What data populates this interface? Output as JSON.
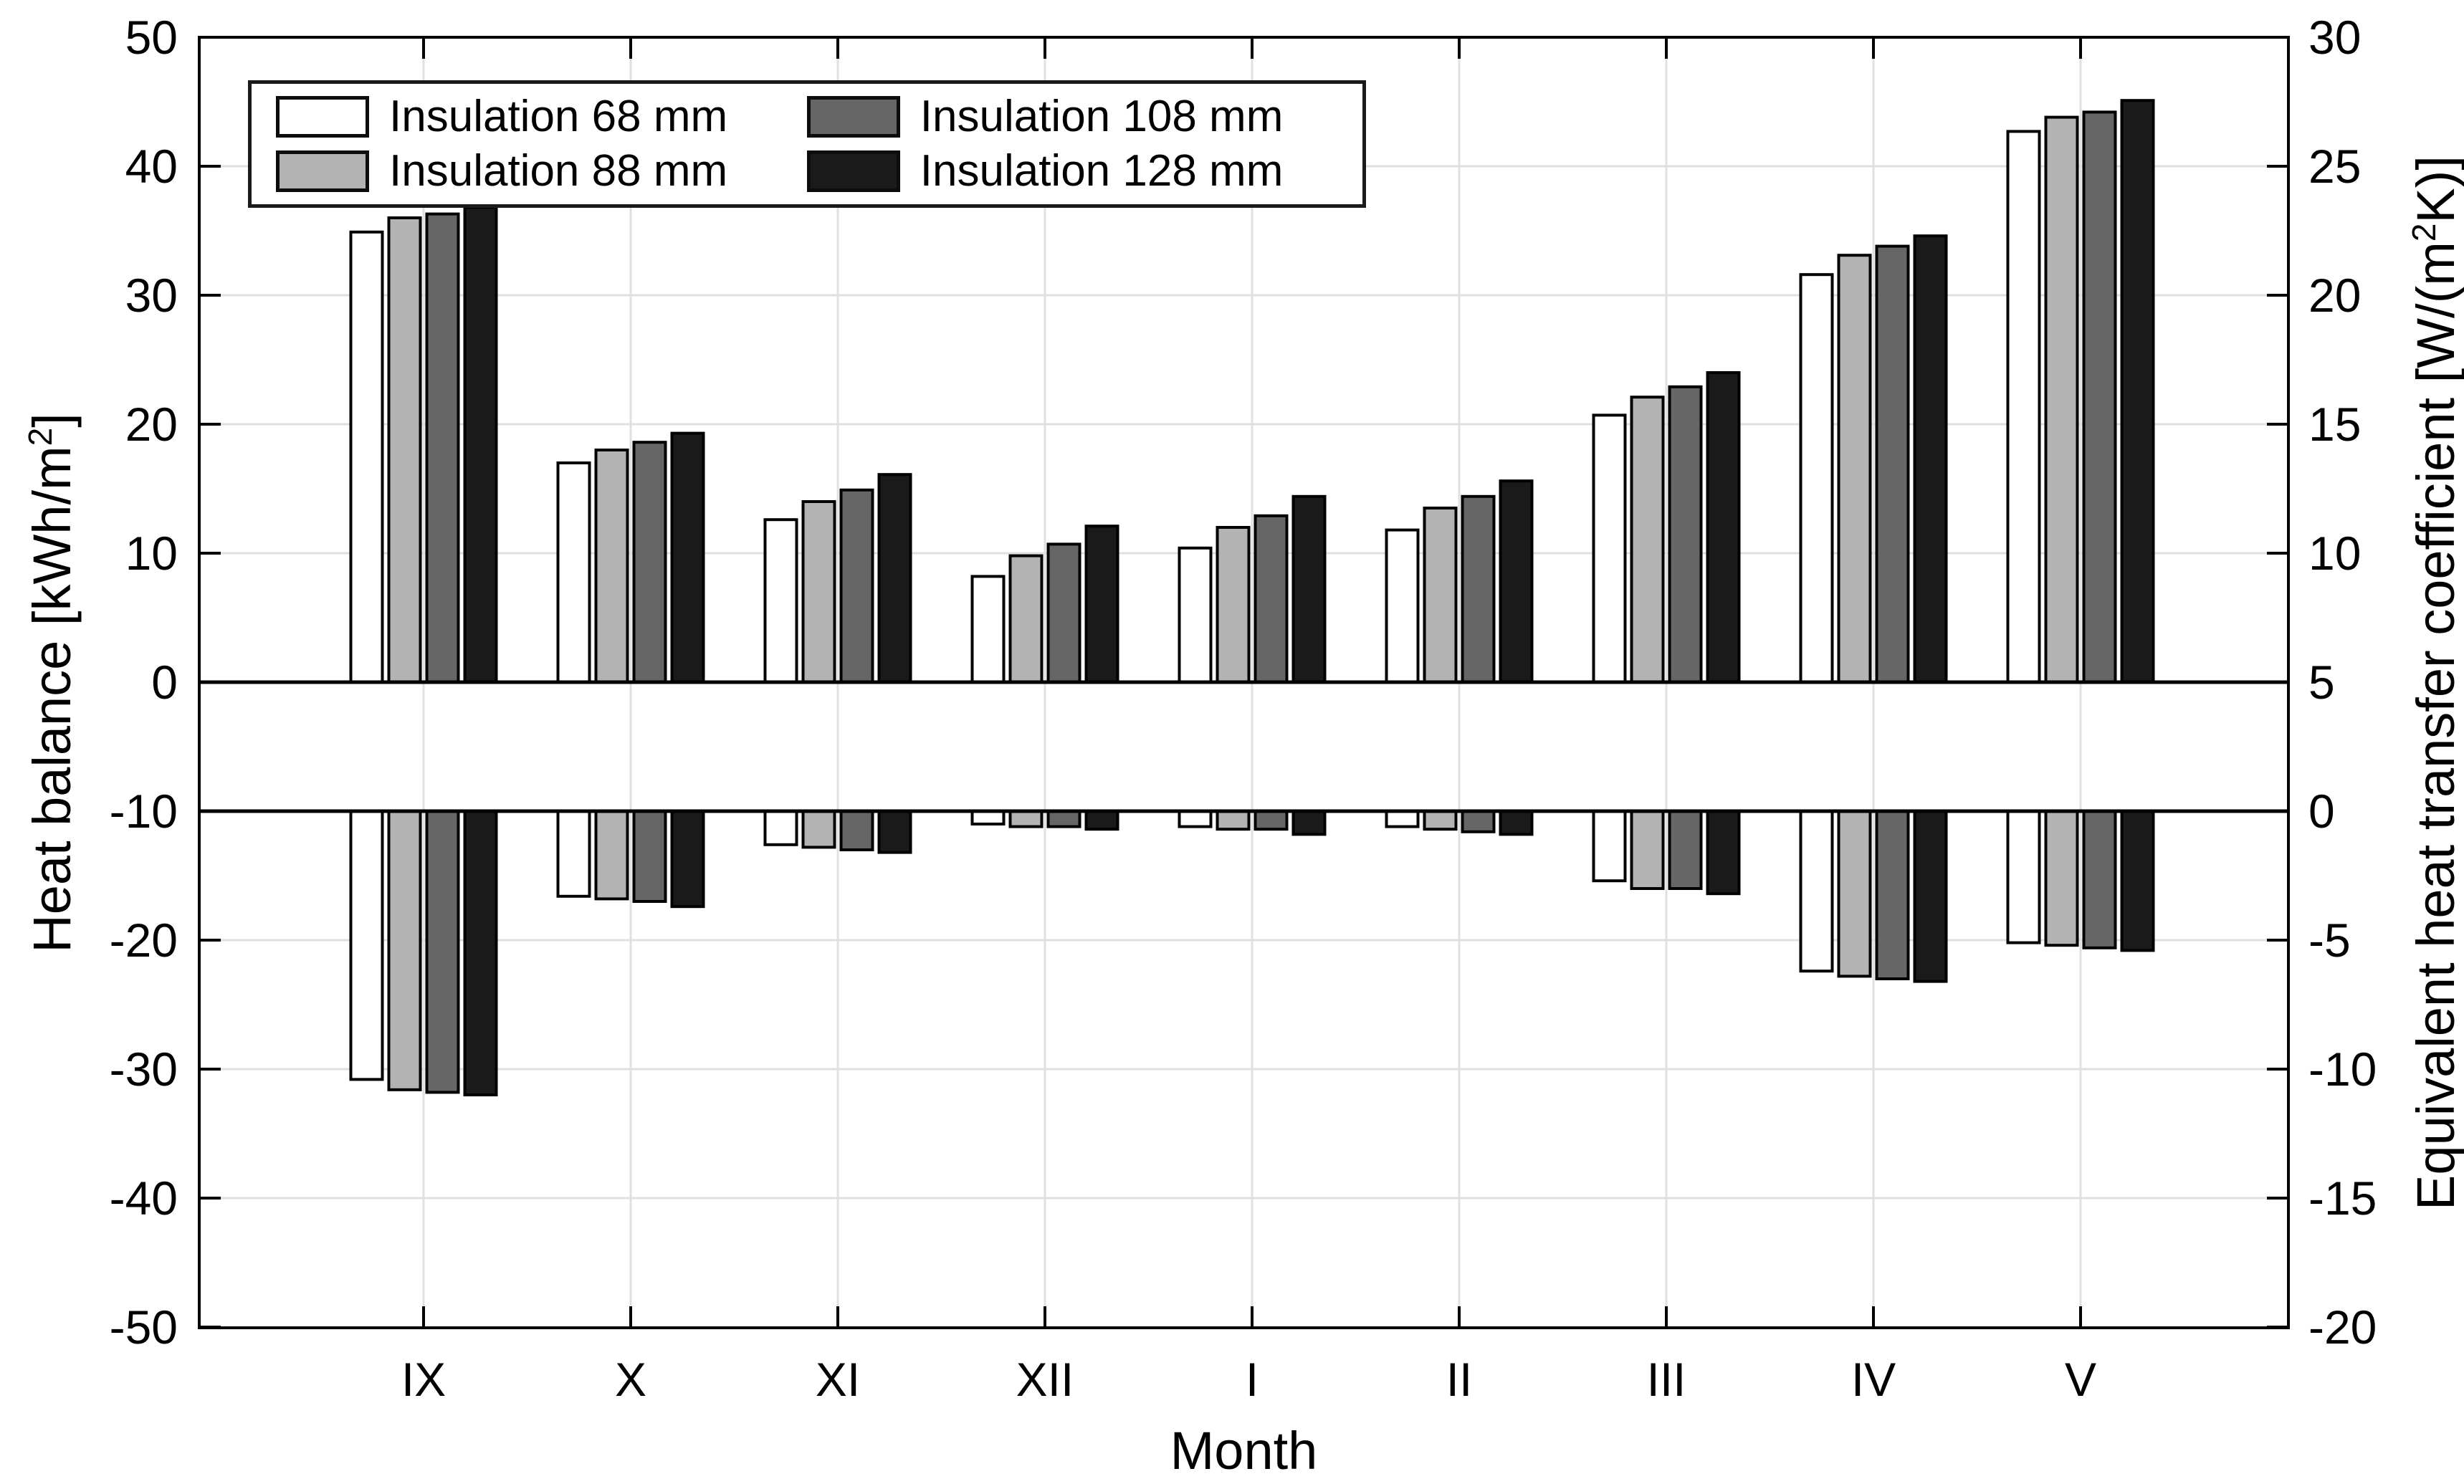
{
  "chart_data": {
    "type": "bar",
    "title": "",
    "xlabel": "Month",
    "categories": [
      "IX",
      "X",
      "XI",
      "XII",
      "I",
      "II",
      "III",
      "IV",
      "V"
    ],
    "left_axis": {
      "label_pre": "Heat balance [kWh/m",
      "label_sup": "2",
      "label_post": "]",
      "min": -50,
      "max": 50,
      "tick_step": 10,
      "ticks": [
        -50,
        -40,
        -30,
        -20,
        -10,
        0,
        10,
        20,
        30,
        40,
        50
      ]
    },
    "right_axis": {
      "label_pre": "Equivalent heat transfer coefficient [W/(m",
      "label_sup": "2",
      "label_post": "K)]",
      "min": -20,
      "max": 30,
      "tick_step": 5,
      "ticks": [
        -20,
        -15,
        -10,
        -5,
        0,
        5,
        10,
        15,
        20,
        25,
        30
      ]
    },
    "grid": true,
    "legend_position": "top-left-inside",
    "layout_note": "Upper bars rise from left-axis 0 (heat balance, kWh/m2). Lower bars hang from right-axis 0 (equivalent heat transfer coefficient, W/(m2K)); right-axis 0 aligns with left-axis -10.",
    "series": [
      {
        "name": "Insulation 68 mm",
        "fill": "#ffffff",
        "heat_balance_kwh_m2": [
          34.9,
          17.0,
          12.6,
          8.2,
          10.4,
          11.8,
          20.7,
          31.6,
          42.7
        ],
        "equiv_heat_transfer_coeff_w_m2k": [
          -10.4,
          -3.3,
          -1.3,
          -0.5,
          -0.6,
          -0.6,
          -2.7,
          -6.2,
          -5.1
        ]
      },
      {
        "name": "Insulation 88 mm",
        "fill": "#b3b3b3",
        "heat_balance_kwh_m2": [
          36.0,
          18.0,
          14.0,
          9.8,
          12.0,
          13.5,
          22.1,
          33.1,
          43.8
        ],
        "equiv_heat_transfer_coeff_w_m2k": [
          -10.8,
          -3.4,
          -1.4,
          -0.6,
          -0.7,
          -0.7,
          -3.0,
          -6.4,
          -5.2
        ]
      },
      {
        "name": "Insulation 108 mm",
        "fill": "#666666",
        "heat_balance_kwh_m2": [
          36.3,
          18.6,
          14.9,
          10.7,
          12.9,
          14.4,
          22.9,
          33.8,
          44.2
        ],
        "equiv_heat_transfer_coeff_w_m2k": [
          -10.9,
          -3.5,
          -1.5,
          -0.6,
          -0.7,
          -0.8,
          -3.0,
          -6.5,
          -5.3
        ]
      },
      {
        "name": "Insulation 128 mm",
        "fill": "#1a1a1a",
        "heat_balance_kwh_m2": [
          36.8,
          19.3,
          16.1,
          12.1,
          14.4,
          15.6,
          24.0,
          34.6,
          45.1
        ],
        "equiv_heat_transfer_coeff_w_m2k": [
          -11.0,
          -3.7,
          -1.6,
          -0.7,
          -0.9,
          -0.9,
          -3.2,
          -6.6,
          -5.4
        ]
      }
    ]
  },
  "colors": {
    "background": "#ffffff",
    "grid": "#e0e0e0",
    "axis": "#000000",
    "bar_edge": "#000000",
    "zero_line": "#000000"
  }
}
